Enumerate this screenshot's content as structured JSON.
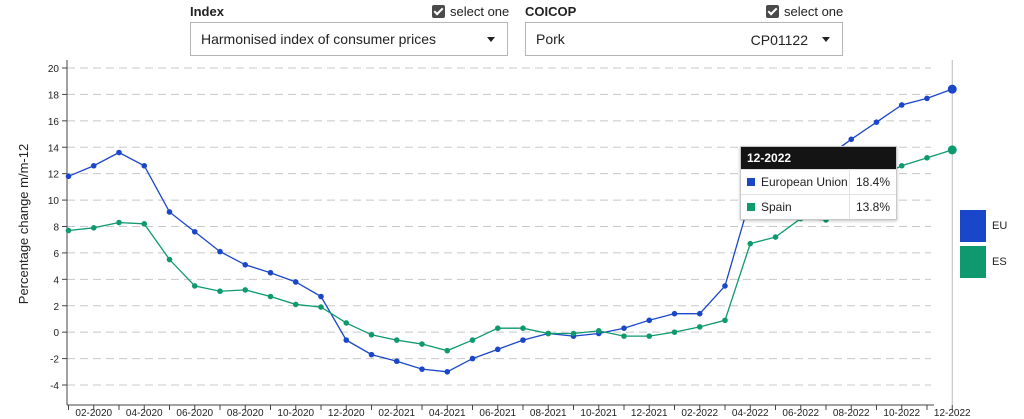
{
  "controls": {
    "index": {
      "label": "Index",
      "select_one": "select one",
      "value": "Harmonised index of consumer prices"
    },
    "coicop": {
      "label": "COICOP",
      "select_one": "select one",
      "value": "Pork",
      "code": "CP01122"
    }
  },
  "tooltip": {
    "title": "12-2022",
    "rows": [
      {
        "name": "European Union",
        "value": "18.4%",
        "color": "#1a47c9"
      },
      {
        "name": "Spain",
        "value": "13.8%",
        "color": "#0e9a6e"
      }
    ]
  },
  "legend": [
    {
      "code": "EU",
      "color": "#1a47c9"
    },
    {
      "code": "ES",
      "color": "#0e9a6e"
    }
  ],
  "chart_data": {
    "type": "line",
    "ylabel": "Percentage change m/m-12",
    "xlabel": "",
    "ylim": [
      -4,
      20
    ],
    "yticks": [
      -4,
      -2,
      0,
      2,
      4,
      6,
      8,
      10,
      12,
      14,
      16,
      18,
      20
    ],
    "grid": "horizontal dashed",
    "x": [
      "01-2020",
      "02-2020",
      "03-2020",
      "04-2020",
      "05-2020",
      "06-2020",
      "07-2020",
      "08-2020",
      "09-2020",
      "10-2020",
      "11-2020",
      "12-2020",
      "01-2021",
      "02-2021",
      "03-2021",
      "04-2021",
      "05-2021",
      "06-2021",
      "07-2021",
      "08-2021",
      "09-2021",
      "10-2021",
      "11-2021",
      "12-2021",
      "01-2022",
      "02-2022",
      "03-2022",
      "04-2022",
      "05-2022",
      "06-2022",
      "07-2022",
      "08-2022",
      "09-2022",
      "10-2022",
      "11-2022",
      "12-2022"
    ],
    "xtick_labels": [
      "02-2020",
      "04-2020",
      "06-2020",
      "08-2020",
      "10-2020",
      "12-2020",
      "02-2021",
      "04-2021",
      "06-2021",
      "08-2021",
      "10-2021",
      "12-2021",
      "02-2022",
      "04-2022",
      "06-2022",
      "08-2022",
      "10-2022",
      "12-2022"
    ],
    "series": [
      {
        "name": "European Union",
        "code": "EU",
        "color": "#1a47c9",
        "values": [
          11.8,
          12.6,
          13.6,
          12.6,
          9.1,
          7.6,
          6.1,
          5.1,
          4.5,
          3.8,
          2.7,
          -0.6,
          -1.7,
          -2.2,
          -2.8,
          -3.0,
          -2.0,
          -1.3,
          -0.6,
          -0.1,
          -0.3,
          -0.1,
          0.3,
          0.9,
          1.4,
          1.4,
          3.5,
          10.1,
          11.1,
          12.2,
          13.2,
          14.6,
          15.9,
          17.2,
          17.7,
          18.4
        ]
      },
      {
        "name": "Spain",
        "code": "ES",
        "color": "#0e9a6e",
        "values": [
          7.7,
          7.9,
          8.3,
          8.2,
          5.5,
          3.5,
          3.1,
          3.2,
          2.7,
          2.1,
          1.9,
          0.7,
          -0.2,
          -0.6,
          -0.9,
          -1.4,
          -0.6,
          0.3,
          0.3,
          -0.1,
          -0.1,
          0.1,
          -0.3,
          -0.3,
          0.0,
          0.4,
          0.9,
          6.7,
          7.2,
          8.6,
          8.5,
          9.8,
          11.7,
          12.6,
          13.2,
          13.8
        ]
      }
    ]
  }
}
